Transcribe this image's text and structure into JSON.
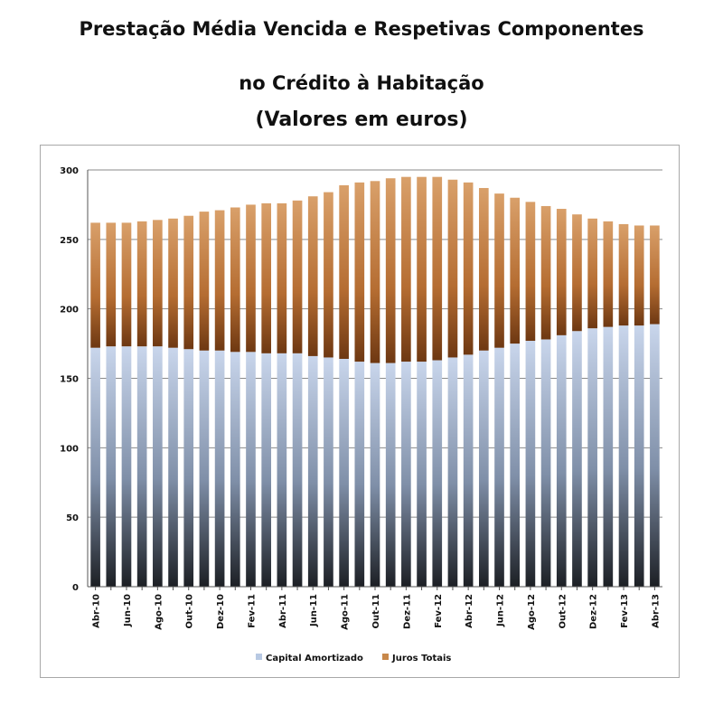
{
  "title_line1": "Prestação Média Vencida e Respetivas Componentes",
  "title_line2": "no Crédito à Habitação",
  "title_line3": "(Valores em euros)",
  "chart_data": {
    "type": "bar",
    "stacked": true,
    "categories": [
      "Abr-10",
      "Mai-10",
      "Jun-10",
      "Jul-10",
      "Ago-10",
      "Set-10",
      "Out-10",
      "Nov-10",
      "Dez-10",
      "Jan-11",
      "Fev-11",
      "Mar-11",
      "Abr-11",
      "Mai-11",
      "Jun-11",
      "Jul-11",
      "Ago-11",
      "Set-11",
      "Out-11",
      "Nov-11",
      "Dez-11",
      "Jan-12",
      "Fev-12",
      "Mar-12",
      "Abr-12",
      "Mai-12",
      "Jun-12",
      "Jul-12",
      "Ago-12",
      "Set-12",
      "Out-12",
      "Nov-12",
      "Dez-12",
      "Jan-13",
      "Fev-13",
      "Mar-13",
      "Abr-13"
    ],
    "tick_labels": [
      "Abr-10",
      "Jun-10",
      "Ago-10",
      "Out-10",
      "Dez-10",
      "Fev-11",
      "Abr-11",
      "Jun-11",
      "Ago-11",
      "Out-11",
      "Dez-11",
      "Fev-12",
      "Abr-12",
      "Jun-12",
      "Ago-12",
      "Out-12",
      "Dez-12",
      "Fev-13",
      "Abr-13"
    ],
    "series": [
      {
        "name": "Capital Amortizado",
        "color": "#b8c9e3",
        "values": [
          172,
          173,
          173,
          173,
          173,
          172,
          171,
          170,
          170,
          169,
          169,
          168,
          168,
          168,
          166,
          165,
          164,
          162,
          161,
          161,
          162,
          162,
          163,
          165,
          167,
          170,
          172,
          175,
          177,
          178,
          181,
          184,
          186,
          187,
          188,
          188,
          189
        ]
      },
      {
        "name": "Juros Totais",
        "color": "#c8884a",
        "values": [
          90,
          89,
          89,
          90,
          91,
          93,
          96,
          100,
          101,
          104,
          106,
          108,
          108,
          110,
          115,
          119,
          125,
          129,
          131,
          133,
          133,
          133,
          132,
          128,
          124,
          117,
          111,
          105,
          100,
          96,
          91,
          84,
          79,
          76,
          73,
          72,
          71
        ]
      }
    ],
    "ylim": [
      0,
      300
    ],
    "yticks": [
      0,
      50,
      100,
      150,
      200,
      250,
      300
    ],
    "grid": true,
    "legend_position": "bottom"
  }
}
